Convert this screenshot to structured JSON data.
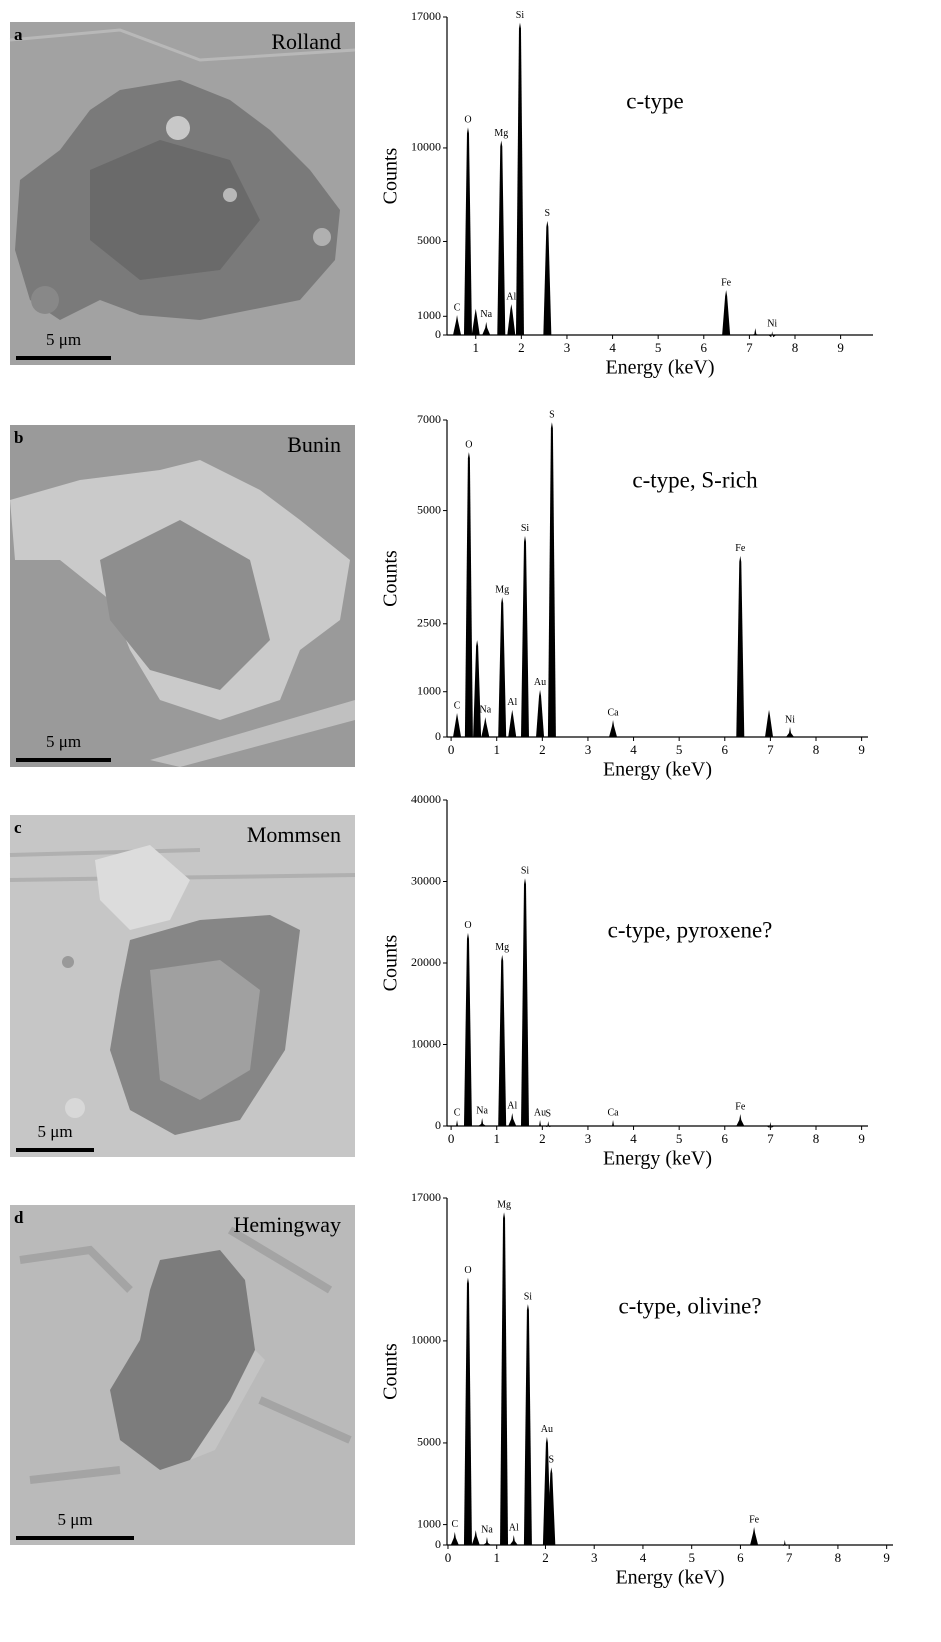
{
  "panels": [
    {
      "letter": "a",
      "name": "Rolland",
      "scale": "5 μm"
    },
    {
      "letter": "b",
      "name": "Bunin",
      "scale": "5 μm"
    },
    {
      "letter": "c",
      "name": "Mommsen",
      "scale": "5 μm"
    },
    {
      "letter": "d",
      "name": "Hemingway",
      "scale": "5 μm"
    }
  ],
  "chart_data": [
    {
      "type": "spectrum",
      "annotation": "c-type",
      "ylabel": "Counts",
      "xlabel": "Energy (keV)",
      "color": "#000000",
      "x": [
        0.59,
        0.83,
        1.0,
        1.23,
        1.56,
        1.78,
        1.97,
        2.57,
        6.49,
        7.13,
        7.5
      ],
      "values": [
        1070,
        11100,
        1400,
        700,
        10400,
        1650,
        16700,
        6100,
        2400,
        370,
        200
      ],
      "peak_labels": [
        "C",
        "O",
        null,
        "Na",
        "Mg",
        "Al",
        "Si",
        "S",
        "Fe",
        null,
        "Ni"
      ],
      "xlim": [
        0.37,
        9.71
      ],
      "xticks": [
        1,
        2,
        3,
        4,
        5,
        6,
        7,
        8,
        9
      ],
      "ylim": [
        0,
        17000
      ],
      "yticks": [
        0,
        1000,
        5000,
        10000,
        17000
      ]
    },
    {
      "type": "spectrum",
      "annotation": "c-type, S-rich",
      "ylabel": "Counts",
      "xlabel": "Energy (keV)",
      "color": "#000000",
      "x": [
        0.13,
        0.39,
        0.57,
        0.75,
        1.12,
        1.34,
        1.62,
        1.95,
        2.21,
        3.55,
        6.34,
        6.97,
        7.43
      ],
      "values": [
        530,
        6290,
        2140,
        440,
        3090,
        600,
        4440,
        1040,
        6950,
        375,
        4000,
        600,
        220
      ],
      "peak_labels": [
        "C",
        "O",
        null,
        "Na",
        "Mg",
        "Al",
        "Si",
        "Au",
        "S",
        "Ca",
        "Fe",
        null,
        "Ni"
      ],
      "xlim": [
        -0.09,
        9.14
      ],
      "xticks": [
        0,
        1,
        2,
        3,
        4,
        5,
        6,
        7,
        8,
        9
      ],
      "ylim": [
        0,
        7000
      ],
      "yticks": [
        0,
        1000,
        2500,
        5000,
        7000
      ]
    },
    {
      "type": "spectrum",
      "annotation": "c-type, pyroxene?",
      "ylabel": "Counts",
      "xlabel": "Energy (keV)",
      "color": "#000000",
      "x": [
        0.13,
        0.37,
        0.68,
        1.12,
        1.34,
        1.62,
        1.95,
        2.13,
        3.55,
        6.34,
        7.0
      ],
      "values": [
        740,
        23700,
        980,
        21000,
        1600,
        30400,
        740,
        600,
        740,
        1470,
        500
      ],
      "peak_labels": [
        "C",
        "O",
        "Na",
        "Mg",
        "Al",
        "Si",
        "Au",
        "S",
        "Ca",
        "Fe",
        null
      ],
      "xlim": [
        -0.09,
        9.14
      ],
      "xticks": [
        0,
        1,
        2,
        3,
        4,
        5,
        6,
        7,
        8,
        9
      ],
      "ylim": [
        0,
        40000
      ],
      "yticks": [
        0,
        10000,
        20000,
        30000,
        40000
      ]
    },
    {
      "type": "spectrum",
      "annotation": "c-type, olivine?",
      "ylabel": "Counts",
      "xlabel": "Energy (keV)",
      "color": "#000000",
      "x": [
        0.14,
        0.41,
        0.57,
        0.8,
        1.15,
        1.35,
        1.64,
        2.03,
        2.12,
        6.28,
        6.91
      ],
      "values": [
        640,
        13100,
        730,
        390,
        16300,
        490,
        11800,
        5300,
        3800,
        880,
        250
      ],
      "peak_labels": [
        "C",
        "O",
        null,
        "Na",
        "Mg",
        "Al",
        "Si",
        "Au",
        "S",
        "Fe",
        null
      ],
      "xlim": [
        -0.02,
        9.13
      ],
      "xticks": [
        0,
        1,
        2,
        3,
        4,
        5,
        6,
        7,
        8,
        9
      ],
      "ylim": [
        0,
        17000
      ],
      "yticks": [
        0,
        1000,
        5000,
        10000,
        17000
      ]
    }
  ]
}
